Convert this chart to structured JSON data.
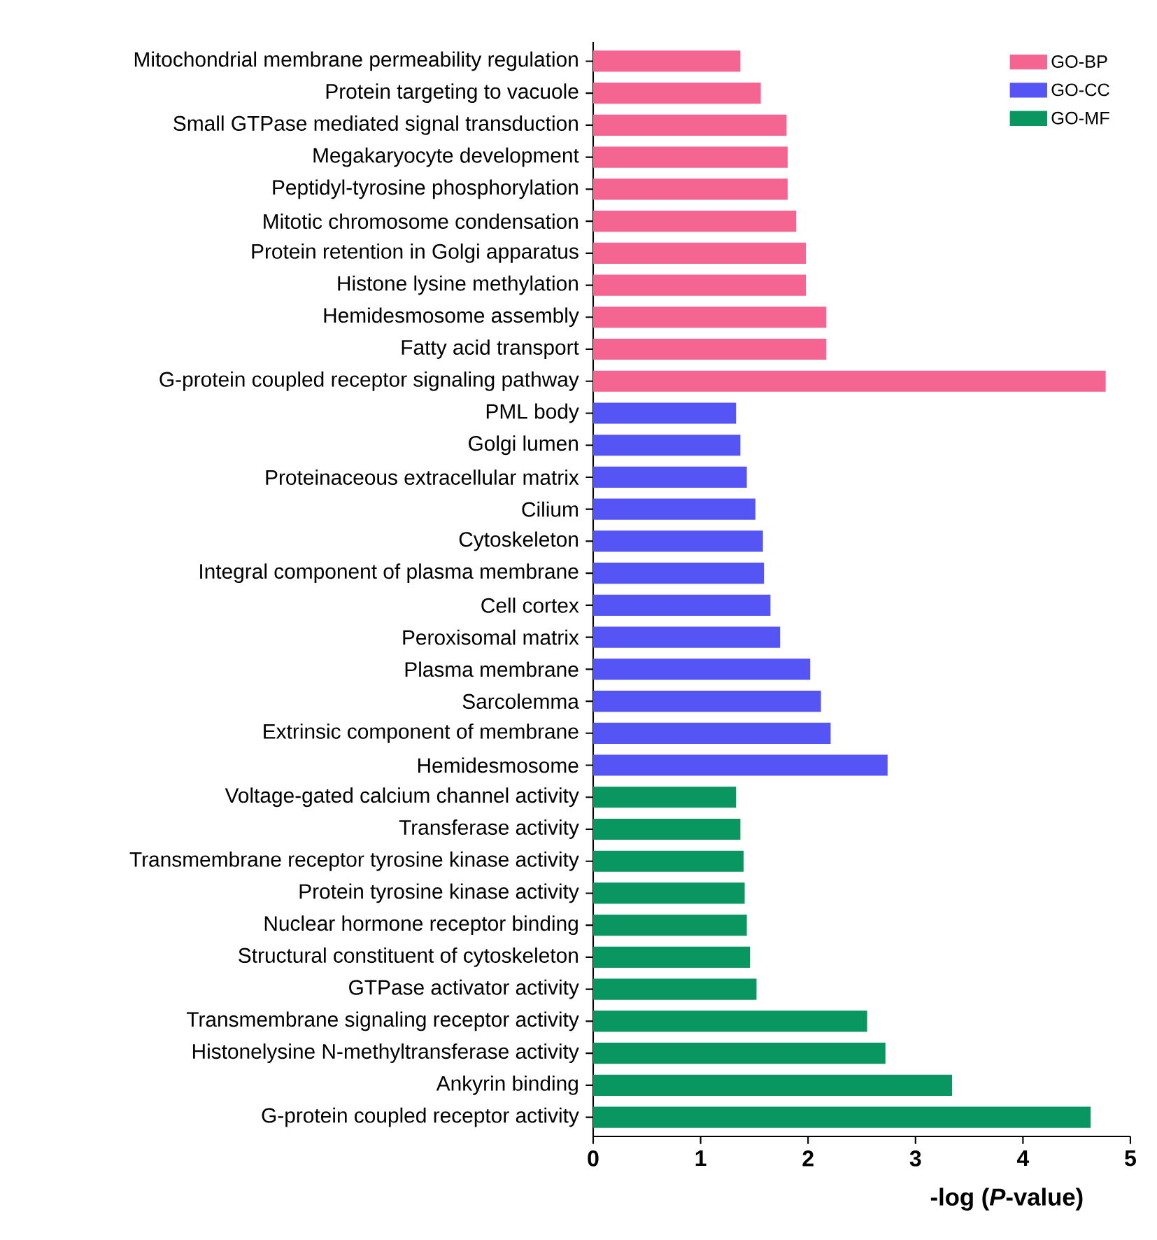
{
  "chart_data": {
    "type": "bar",
    "orientation": "horizontal",
    "xlabel": "-log (*P*-value)",
    "categories": [
      "Mitochondrial membrane permeability regulation",
      "Protein targeting to vacuole",
      "Small GTPase mediated signal transduction",
      "Megakaryocyte development",
      "Peptidyl-tyrosine phosphorylation",
      "Mitotic chromosome condensation",
      "Protein retention in Golgi apparatus",
      "Histone lysine methylation",
      "Hemidesmosome assembly",
      "Fatty acid transport",
      "G-protein coupled receptor signaling pathway",
      "PML body",
      "Golgi lumen",
      "Proteinaceous extracellular matrix",
      "Cilium",
      "Cytoskeleton",
      "Integral component of plasma membrane",
      "Cell cortex",
      "Peroxisomal matrix",
      "Plasma membrane",
      "Sarcolemma",
      "Extrinsic component of membrane",
      "Hemidesmosome",
      "Voltage-gated calcium channel activity",
      "Transferase activity",
      "Transmembrane receptor tyrosine kinase activity",
      "Protein tyrosine kinase activity",
      "Nuclear hormone receptor binding",
      "Structural constituent of cytoskeleton",
      "GTPase activator activity",
      "Transmembrane signaling receptor activity",
      "Histonelysine N-methyltransferase activity",
      "Ankyrin binding",
      "G-protein coupled receptor activity"
    ],
    "series": [
      {
        "name": "GO-BP",
        "color": "#f56591",
        "values": [
          1.37,
          1.56,
          1.8,
          1.81,
          1.81,
          1.89,
          1.98,
          1.98,
          2.17,
          2.17,
          4.77,
          null,
          null,
          null,
          null,
          null,
          null,
          null,
          null,
          null,
          null,
          null,
          null,
          null,
          null,
          null,
          null,
          null,
          null,
          null,
          null,
          null,
          null,
          null
        ]
      },
      {
        "name": "GO-CC",
        "color": "#5555f5",
        "values": [
          null,
          null,
          null,
          null,
          null,
          null,
          null,
          null,
          null,
          null,
          null,
          1.33,
          1.37,
          1.43,
          1.51,
          1.58,
          1.59,
          1.65,
          1.74,
          2.02,
          2.12,
          2.21,
          2.74,
          null,
          null,
          null,
          null,
          null,
          null,
          null,
          null,
          null,
          null,
          null
        ]
      },
      {
        "name": "GO-MF",
        "color": "#0a9661",
        "values": [
          null,
          null,
          null,
          null,
          null,
          null,
          null,
          null,
          null,
          null,
          null,
          null,
          null,
          null,
          null,
          null,
          null,
          null,
          null,
          null,
          null,
          null,
          null,
          1.33,
          1.37,
          1.4,
          1.41,
          1.43,
          1.46,
          1.52,
          2.55,
          2.72,
          3.34,
          4.63
        ]
      }
    ],
    "xlim": [
      0,
      5
    ],
    "xticks": [
      0,
      1,
      2,
      3,
      4,
      5
    ],
    "legend": "top right"
  }
}
